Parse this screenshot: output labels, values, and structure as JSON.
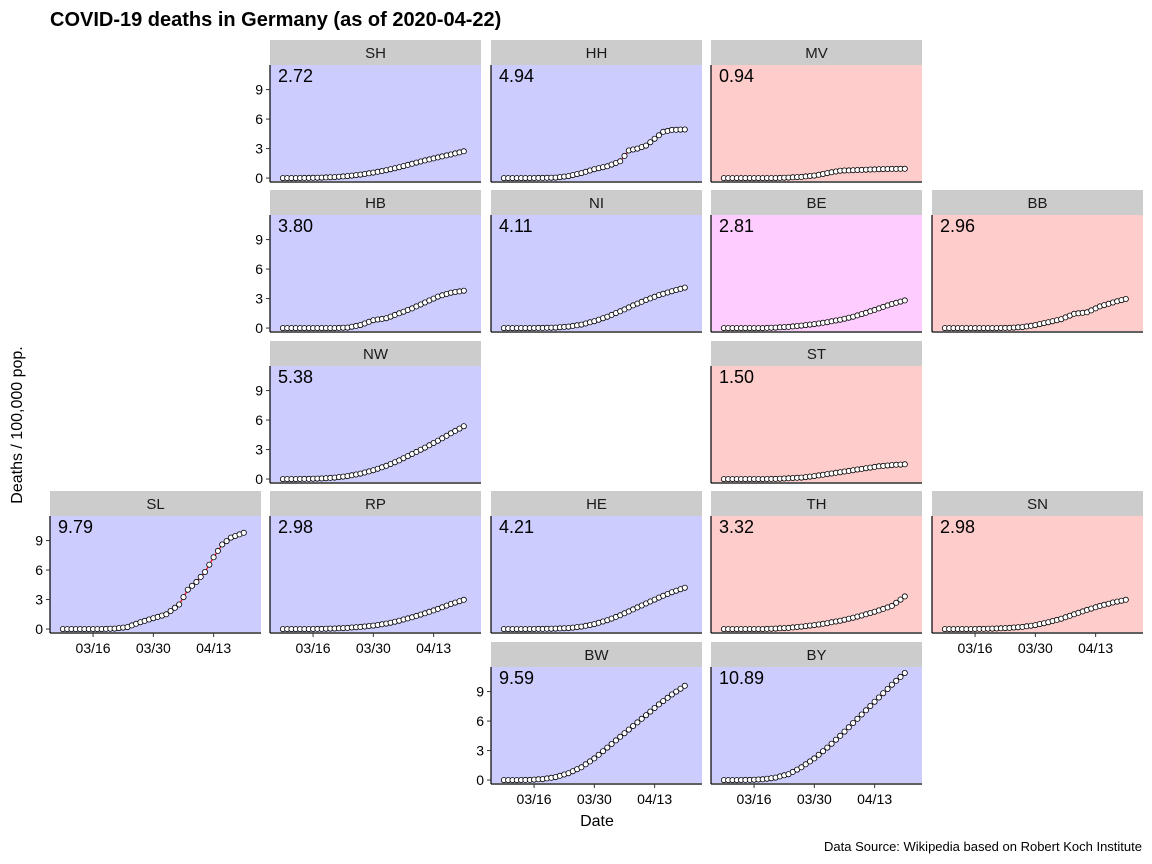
{
  "chart_data": {
    "type": "scatter",
    "title": "COVID-19 deaths in Germany (as of 2020-04-22)",
    "xlabel": "Date",
    "ylabel": "Deaths / 100,000 pop.",
    "caption": "Data Source: Wikipedia based on Robert Koch Institute",
    "x_ticks": [
      "03/16",
      "03/30",
      "04/13"
    ],
    "y_ticks": [
      0,
      3,
      6,
      9
    ],
    "ylim": [
      -0.3,
      11.5
    ],
    "grid": false,
    "smooth_line_color": "#ff0000",
    "fill_colors": {
      "blue": "#ccccff",
      "red": "#ffcccc",
      "magenta": "#ffccff"
    },
    "strip_color": "#cccccc",
    "panels": [
      {
        "state": "SH",
        "value_label": "2.72",
        "final": 2.72,
        "fill": "blue",
        "points": [
          [
            0,
            0
          ],
          [
            3,
            0
          ],
          [
            6,
            0.02
          ],
          [
            9,
            0.05
          ],
          [
            12,
            0.1
          ],
          [
            15,
            0.2
          ],
          [
            18,
            0.35
          ],
          [
            21,
            0.55
          ],
          [
            24,
            0.8
          ],
          [
            27,
            1.1
          ],
          [
            30,
            1.45
          ],
          [
            33,
            1.8
          ],
          [
            36,
            2.1
          ],
          [
            39,
            2.4
          ],
          [
            42,
            2.72
          ]
        ]
      },
      {
        "state": "HH",
        "value_label": "4.94",
        "final": 4.94,
        "fill": "blue",
        "points": [
          [
            0,
            0
          ],
          [
            3,
            0
          ],
          [
            6,
            0
          ],
          [
            9,
            0.02
          ],
          [
            12,
            0.05
          ],
          [
            15,
            0.2
          ],
          [
            18,
            0.5
          ],
          [
            21,
            0.9
          ],
          [
            24,
            1.2
          ],
          [
            27,
            1.7
          ],
          [
            29,
            2.8
          ],
          [
            31,
            3.0
          ],
          [
            33,
            3.3
          ],
          [
            35,
            4.0
          ],
          [
            37,
            4.7
          ],
          [
            39,
            4.9
          ],
          [
            42,
            4.94
          ]
        ]
      },
      {
        "state": "MV",
        "value_label": "0.94",
        "final": 0.94,
        "fill": "red",
        "points": [
          [
            0,
            0
          ],
          [
            3,
            0
          ],
          [
            6,
            0
          ],
          [
            9,
            0
          ],
          [
            12,
            0
          ],
          [
            15,
            0.05
          ],
          [
            18,
            0.12
          ],
          [
            21,
            0.25
          ],
          [
            24,
            0.5
          ],
          [
            27,
            0.75
          ],
          [
            30,
            0.8
          ],
          [
            33,
            0.85
          ],
          [
            36,
            0.9
          ],
          [
            39,
            0.93
          ],
          [
            42,
            0.94
          ]
        ]
      },
      {
        "state": "HB",
        "value_label": "3.80",
        "final": 3.8,
        "fill": "blue",
        "points": [
          [
            0,
            0
          ],
          [
            3,
            0
          ],
          [
            6,
            0
          ],
          [
            9,
            0
          ],
          [
            12,
            0
          ],
          [
            15,
            0.05
          ],
          [
            18,
            0.3
          ],
          [
            21,
            0.8
          ],
          [
            24,
            1.0
          ],
          [
            27,
            1.5
          ],
          [
            30,
            2.0
          ],
          [
            33,
            2.6
          ],
          [
            36,
            3.2
          ],
          [
            39,
            3.6
          ],
          [
            42,
            3.8
          ]
        ]
      },
      {
        "state": "NI",
        "value_label": "4.11",
        "final": 4.11,
        "fill": "blue",
        "points": [
          [
            0,
            0
          ],
          [
            3,
            0
          ],
          [
            6,
            0
          ],
          [
            9,
            0.02
          ],
          [
            12,
            0.05
          ],
          [
            15,
            0.15
          ],
          [
            18,
            0.35
          ],
          [
            21,
            0.7
          ],
          [
            24,
            1.15
          ],
          [
            27,
            1.7
          ],
          [
            30,
            2.3
          ],
          [
            33,
            2.85
          ],
          [
            36,
            3.35
          ],
          [
            39,
            3.75
          ],
          [
            42,
            4.11
          ]
        ]
      },
      {
        "state": "BE",
        "value_label": "2.81",
        "final": 2.81,
        "fill": "magenta",
        "points": [
          [
            0,
            0
          ],
          [
            3,
            0
          ],
          [
            6,
            0
          ],
          [
            9,
            0
          ],
          [
            12,
            0.05
          ],
          [
            15,
            0.12
          ],
          [
            18,
            0.25
          ],
          [
            21,
            0.4
          ],
          [
            24,
            0.6
          ],
          [
            27,
            0.85
          ],
          [
            30,
            1.15
          ],
          [
            33,
            1.55
          ],
          [
            36,
            2.0
          ],
          [
            39,
            2.45
          ],
          [
            42,
            2.81
          ]
        ]
      },
      {
        "state": "BB",
        "value_label": "2.96",
        "final": 2.96,
        "fill": "red",
        "points": [
          [
            0,
            0
          ],
          [
            3,
            0
          ],
          [
            6,
            0
          ],
          [
            9,
            0
          ],
          [
            12,
            0
          ],
          [
            15,
            0.02
          ],
          [
            18,
            0.1
          ],
          [
            21,
            0.3
          ],
          [
            24,
            0.6
          ],
          [
            27,
            0.9
          ],
          [
            30,
            1.45
          ],
          [
            33,
            1.6
          ],
          [
            36,
            2.2
          ],
          [
            39,
            2.6
          ],
          [
            42,
            2.96
          ]
        ]
      },
      {
        "state": "NW",
        "value_label": "5.38",
        "final": 5.38,
        "fill": "blue",
        "points": [
          [
            0,
            0
          ],
          [
            3,
            0
          ],
          [
            6,
            0.02
          ],
          [
            9,
            0.06
          ],
          [
            12,
            0.15
          ],
          [
            15,
            0.3
          ],
          [
            18,
            0.55
          ],
          [
            21,
            0.9
          ],
          [
            24,
            1.35
          ],
          [
            27,
            1.9
          ],
          [
            30,
            2.55
          ],
          [
            33,
            3.2
          ],
          [
            36,
            3.9
          ],
          [
            39,
            4.65
          ],
          [
            42,
            5.38
          ]
        ]
      },
      {
        "state": "ST",
        "value_label": "1.50",
        "final": 1.5,
        "fill": "red",
        "points": [
          [
            0,
            0
          ],
          [
            3,
            0
          ],
          [
            6,
            0
          ],
          [
            9,
            0
          ],
          [
            12,
            0.02
          ],
          [
            15,
            0.08
          ],
          [
            18,
            0.15
          ],
          [
            21,
            0.3
          ],
          [
            24,
            0.5
          ],
          [
            27,
            0.7
          ],
          [
            30,
            0.9
          ],
          [
            33,
            1.1
          ],
          [
            36,
            1.3
          ],
          [
            39,
            1.42
          ],
          [
            42,
            1.5
          ]
        ]
      },
      {
        "state": "SL",
        "value_label": "9.79",
        "final": 9.79,
        "fill": "blue",
        "points": [
          [
            0,
            0
          ],
          [
            3,
            0
          ],
          [
            6,
            0
          ],
          [
            9,
            0
          ],
          [
            12,
            0.05
          ],
          [
            15,
            0.2
          ],
          [
            18,
            0.7
          ],
          [
            21,
            1.1
          ],
          [
            24,
            1.5
          ],
          [
            27,
            2.5
          ],
          [
            29,
            4.0
          ],
          [
            31,
            4.8
          ],
          [
            33,
            5.8
          ],
          [
            35,
            7.3
          ],
          [
            37,
            8.6
          ],
          [
            39,
            9.3
          ],
          [
            42,
            9.79
          ]
        ]
      },
      {
        "state": "RP",
        "value_label": "2.98",
        "final": 2.98,
        "fill": "blue",
        "points": [
          [
            0,
            0
          ],
          [
            3,
            0
          ],
          [
            6,
            0
          ],
          [
            9,
            0.02
          ],
          [
            12,
            0.06
          ],
          [
            15,
            0.12
          ],
          [
            18,
            0.22
          ],
          [
            21,
            0.35
          ],
          [
            24,
            0.55
          ],
          [
            27,
            0.85
          ],
          [
            30,
            1.2
          ],
          [
            33,
            1.6
          ],
          [
            36,
            2.05
          ],
          [
            39,
            2.55
          ],
          [
            42,
            2.98
          ]
        ]
      },
      {
        "state": "HE",
        "value_label": "4.21",
        "final": 4.21,
        "fill": "blue",
        "points": [
          [
            0,
            0
          ],
          [
            3,
            0
          ],
          [
            6,
            0
          ],
          [
            9,
            0.02
          ],
          [
            12,
            0.05
          ],
          [
            15,
            0.1
          ],
          [
            18,
            0.25
          ],
          [
            21,
            0.5
          ],
          [
            24,
            0.9
          ],
          [
            27,
            1.4
          ],
          [
            30,
            2.0
          ],
          [
            33,
            2.6
          ],
          [
            36,
            3.2
          ],
          [
            39,
            3.75
          ],
          [
            42,
            4.21
          ]
        ]
      },
      {
        "state": "TH",
        "value_label": "3.32",
        "final": 3.32,
        "fill": "red",
        "points": [
          [
            0,
            0
          ],
          [
            3,
            0
          ],
          [
            6,
            0
          ],
          [
            9,
            0
          ],
          [
            12,
            0.05
          ],
          [
            15,
            0.12
          ],
          [
            18,
            0.25
          ],
          [
            21,
            0.4
          ],
          [
            24,
            0.6
          ],
          [
            27,
            0.85
          ],
          [
            30,
            1.15
          ],
          [
            33,
            1.5
          ],
          [
            36,
            1.9
          ],
          [
            39,
            2.35
          ],
          [
            42,
            3.32
          ]
        ]
      },
      {
        "state": "SN",
        "value_label": "2.98",
        "final": 2.98,
        "fill": "red",
        "points": [
          [
            0,
            0
          ],
          [
            3,
            0
          ],
          [
            6,
            0
          ],
          [
            9,
            0.02
          ],
          [
            12,
            0.06
          ],
          [
            15,
            0.12
          ],
          [
            18,
            0.22
          ],
          [
            21,
            0.4
          ],
          [
            24,
            0.7
          ],
          [
            27,
            1.05
          ],
          [
            30,
            1.5
          ],
          [
            33,
            1.95
          ],
          [
            36,
            2.35
          ],
          [
            39,
            2.7
          ],
          [
            42,
            2.98
          ]
        ]
      },
      {
        "state": "BW",
        "value_label": "9.59",
        "final": 9.59,
        "fill": "blue",
        "points": [
          [
            0,
            0
          ],
          [
            3,
            0
          ],
          [
            6,
            0.02
          ],
          [
            9,
            0.1
          ],
          [
            12,
            0.3
          ],
          [
            15,
            0.7
          ],
          [
            18,
            1.3
          ],
          [
            21,
            2.2
          ],
          [
            24,
            3.3
          ],
          [
            27,
            4.4
          ],
          [
            30,
            5.5
          ],
          [
            33,
            6.6
          ],
          [
            36,
            7.7
          ],
          [
            39,
            8.7
          ],
          [
            42,
            9.59
          ]
        ]
      },
      {
        "state": "BY",
        "value_label": "10.89",
        "final": 10.89,
        "fill": "blue",
        "points": [
          [
            0,
            0
          ],
          [
            3,
            0
          ],
          [
            6,
            0.02
          ],
          [
            9,
            0.08
          ],
          [
            12,
            0.25
          ],
          [
            15,
            0.6
          ],
          [
            18,
            1.3
          ],
          [
            21,
            2.2
          ],
          [
            24,
            3.3
          ],
          [
            27,
            4.5
          ],
          [
            30,
            5.8
          ],
          [
            33,
            7.1
          ],
          [
            36,
            8.4
          ],
          [
            39,
            9.7
          ],
          [
            42,
            10.89
          ]
        ]
      }
    ]
  }
}
